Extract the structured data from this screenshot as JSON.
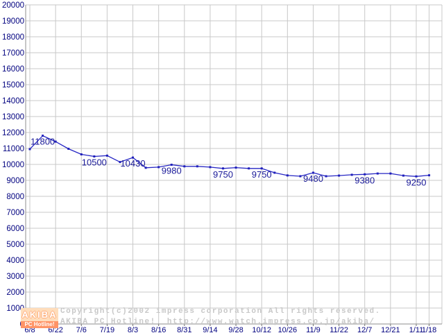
{
  "chart_data": {
    "type": "line",
    "title": "",
    "line_color": "#2626c4",
    "marker_color": "#2020bb",
    "grid_color": "#c8c8c8",
    "axis_color": "#8c8c8c",
    "axis_label_color": "#00007f",
    "data_label_color": "#1a1a99",
    "y_axis": {
      "min": 0,
      "max": 20000,
      "step": 1000
    },
    "x_tick_labels": [
      "6/8",
      "6/22",
      "7/6",
      "7/19",
      "8/3",
      "8/16",
      "8/31",
      "9/14",
      "9/28",
      "10/12",
      "10/26",
      "11/9",
      "11/22",
      "12/7",
      "12/21",
      "1/11",
      "1/18"
    ],
    "x_tick_indices": [
      0,
      2,
      4,
      6,
      8,
      10,
      12,
      14,
      16,
      18,
      20,
      22,
      24,
      26,
      28,
      30,
      31
    ],
    "values": [
      10960,
      11800,
      11430,
      10980,
      10630,
      10500,
      10550,
      10150,
      10430,
      9790,
      9830,
      9980,
      9880,
      9880,
      9830,
      9750,
      9800,
      9750,
      9750,
      9480,
      9310,
      9260,
      9480,
      9260,
      9300,
      9350,
      9380,
      9430,
      9430,
      9300,
      9250,
      9320
    ],
    "point_labels": [
      {
        "index": 1,
        "text": "11800"
      },
      {
        "index": 5,
        "text": "10500"
      },
      {
        "index": 8,
        "text": "10430"
      },
      {
        "index": 11,
        "text": "9980"
      },
      {
        "index": 15,
        "text": "9750"
      },
      {
        "index": 18,
        "text": "9750"
      },
      {
        "index": 22,
        "text": "9480"
      },
      {
        "index": 26,
        "text": "9380"
      },
      {
        "index": 30,
        "text": "9250"
      }
    ],
    "legend": null,
    "grid": true
  },
  "watermark": {
    "logo_top": "AKIBA",
    "logo_bottom": "PC Hotline!",
    "line1": "Copyright(c)2002 impress corporation All rights reserved.",
    "line2": "AKIBA PC Hotline!  http://www.watch.impress.co.jp/akiba/"
  }
}
